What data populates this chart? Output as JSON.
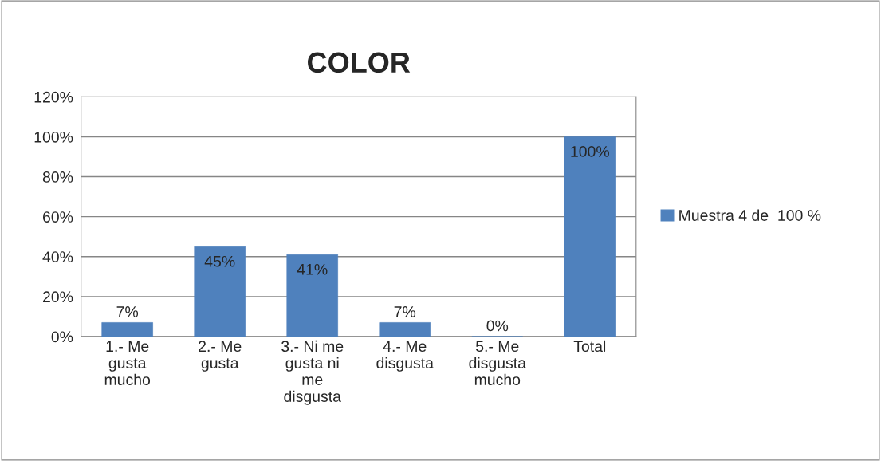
{
  "chart_data": {
    "type": "bar",
    "title": "COLOR",
    "categories": [
      "1.- Me gusta mucho",
      "2.- Me gusta",
      "3.- Ni me gusta ni me disgusta",
      "4.- Me disgusta",
      "5.- Me disgusta mucho",
      "Total"
    ],
    "series": [
      {
        "name": "Muestra 4 de  100 %",
        "color": "#4f81bd",
        "values": [
          7,
          45,
          41,
          7,
          0,
          100
        ],
        "value_labels": [
          "7%",
          "45%",
          "41%",
          "7%",
          "0%",
          "100%"
        ]
      }
    ],
    "ylim": [
      0,
      120
    ],
    "yticks": [
      {
        "value": 0,
        "label": "0%"
      },
      {
        "value": 20,
        "label": "20%"
      },
      {
        "value": 40,
        "label": "40%"
      },
      {
        "value": 60,
        "label": "60%"
      },
      {
        "value": 80,
        "label": "80%"
      },
      {
        "value": 100,
        "label": "100%"
      },
      {
        "value": 120,
        "label": "120%"
      }
    ],
    "grid": "y",
    "legend": "right"
  }
}
